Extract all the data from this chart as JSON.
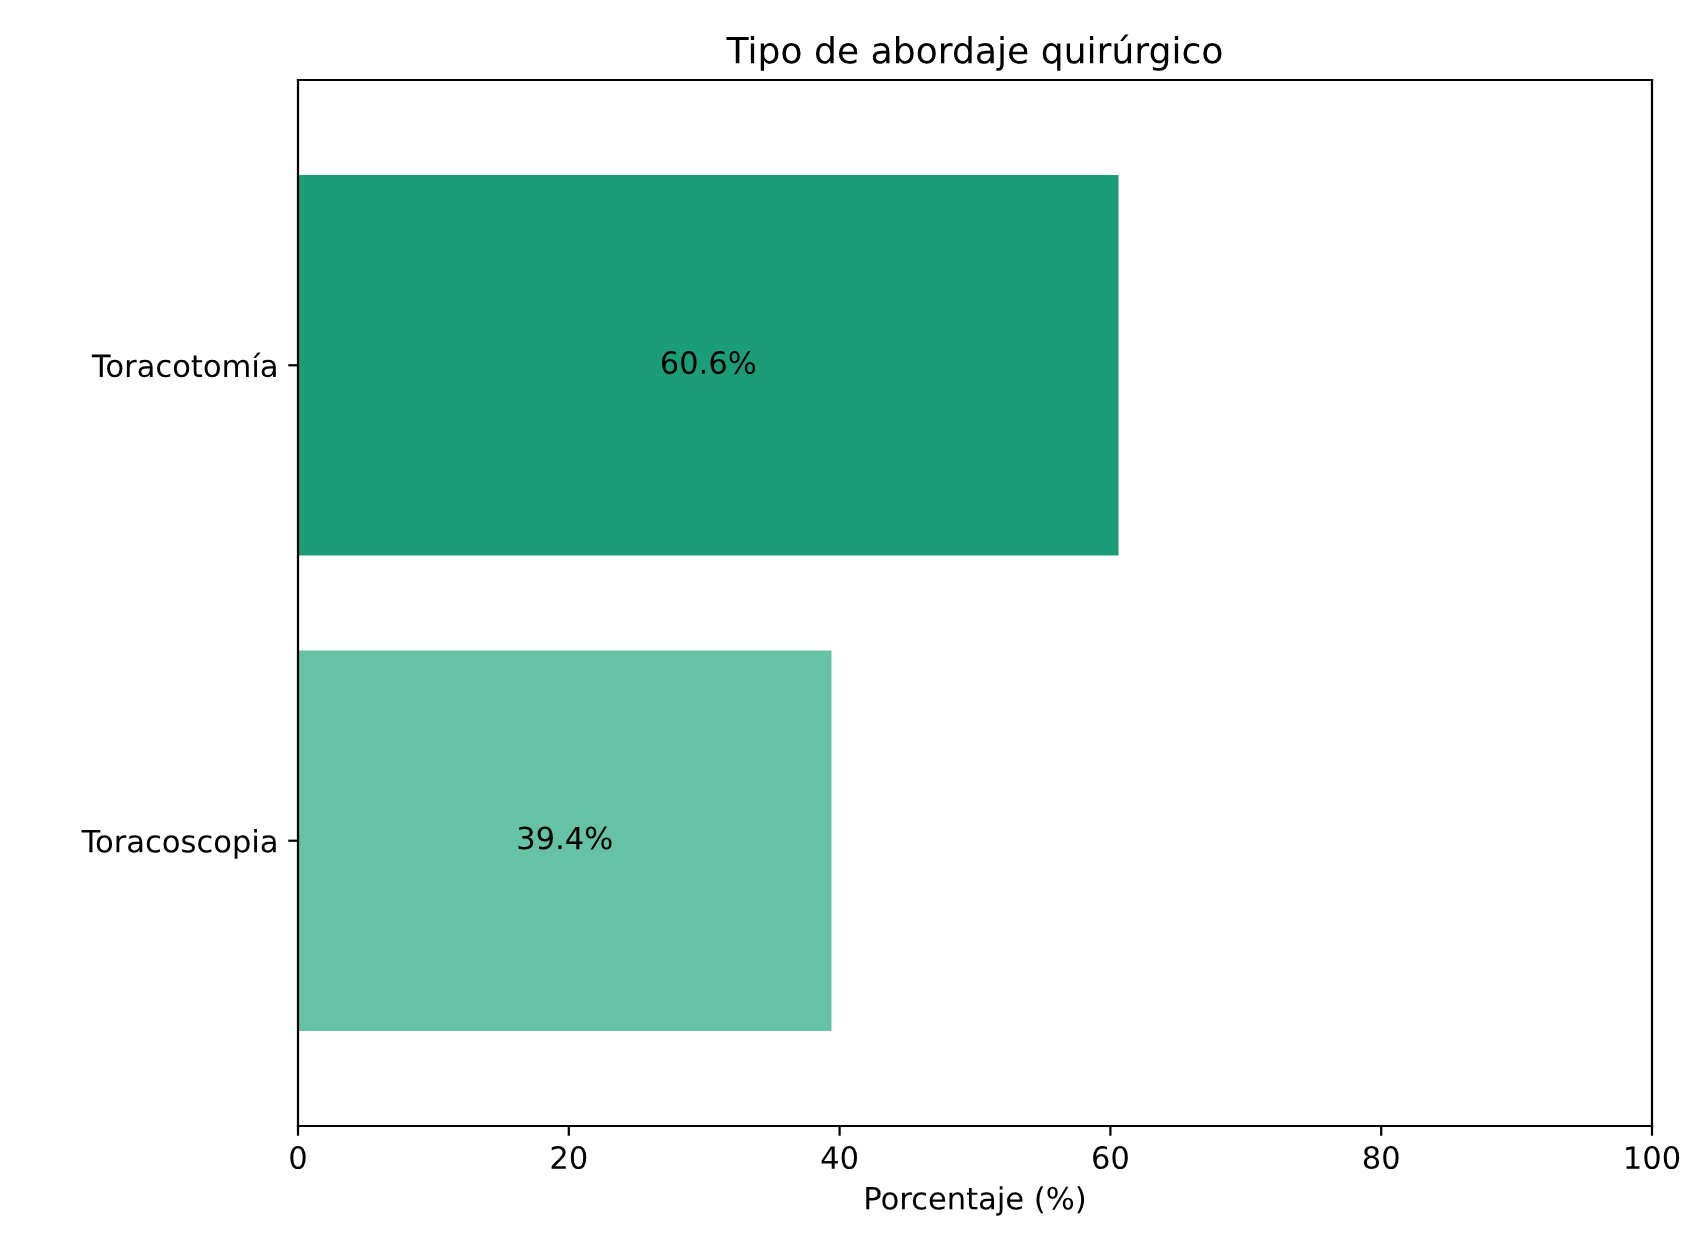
{
  "chart_data": {
    "type": "bar",
    "orientation": "horizontal",
    "title": "Tipo de abordaje quirúrgico",
    "xlabel": "Porcentaje (%)",
    "categories": [
      "Toracotomía",
      "Toracoscopia"
    ],
    "values": [
      60.6,
      39.4
    ],
    "colors": [
      "#1b9e77",
      "#66c2a5"
    ],
    "value_labels": [
      "60.6%",
      "39.4%"
    ],
    "xlim": [
      0,
      100
    ],
    "xticks": [
      0,
      20,
      40,
      60,
      80,
      100
    ],
    "grid": false
  }
}
